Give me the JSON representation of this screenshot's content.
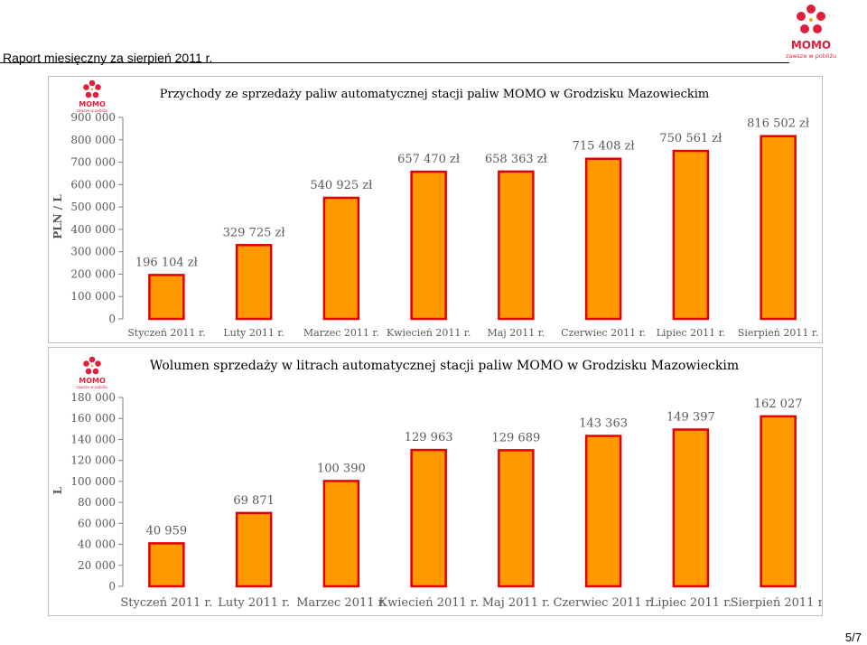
{
  "header": {
    "report_title": "Raport miesięczny za sierpień 2011 r.",
    "page_number": "5/7"
  },
  "logo": {
    "brand": "MOMO",
    "tagline": "zawsze w pobliżu"
  },
  "colors": {
    "bar_fill": "#FF9900",
    "bar_stroke": "#E00000",
    "axis": "#808080",
    "text": "#595959",
    "logo_red": "#E01F3D"
  },
  "chart_data": [
    {
      "type": "bar",
      "title": "Przychody ze sprzedaży paliw automatycznej stacji paliw MOMO w Grodzisku Mazowieckim",
      "xlabel": "",
      "ylabel": "PLN / L",
      "ylim": [
        0,
        900000
      ],
      "ytick_labels": [
        "0",
        "100 000",
        "200 000",
        "300 000",
        "400 000",
        "500 000",
        "600 000",
        "700 000",
        "800 000",
        "900 000"
      ],
      "categories": [
        "Styczeń 2011 r.",
        "Luty 2011 r.",
        "Marzec 2011 r.",
        "Kwiecień 2011 r.",
        "Maj 2011 r.",
        "Czerwiec 2011 r.",
        "Lipiec 2011 r.",
        "Sierpień 2011 r."
      ],
      "values": [
        196104,
        329725,
        540925,
        657470,
        658363,
        715408,
        750561,
        816502
      ],
      "data_labels": [
        "196 104 zł",
        "329 725 zł",
        "540 925 zł",
        "657 470 zł",
        "658 363 zł",
        "715 408 zł",
        "750 561 zł",
        "816 502 zł"
      ],
      "grid": false,
      "legend": "none"
    },
    {
      "type": "bar",
      "title": "Wolumen sprzedaży w litrach automatycznej stacji paliw MOMO w Grodzisku Mazowieckim",
      "xlabel": "",
      "ylabel": "L",
      "ylim": [
        0,
        180000
      ],
      "ytick_labels": [
        "0",
        "20 000",
        "40 000",
        "60 000",
        "80 000",
        "100 000",
        "120 000",
        "140 000",
        "160 000",
        "180 000"
      ],
      "categories": [
        "Styczeń 2011 r.",
        "Luty 2011 r.",
        "Marzec 2011 r.",
        "Kwiecień 2011 r.",
        "Maj 2011 r.",
        "Czerwiec 2011 r.",
        "Lipiec 2011 r.",
        "Sierpień 2011 r."
      ],
      "values": [
        40959,
        69871,
        100390,
        129963,
        129689,
        143363,
        149397,
        162027
      ],
      "data_labels": [
        "40 959",
        "69 871",
        "100 390",
        "129 963",
        "129 689",
        "143 363",
        "149 397",
        "162 027"
      ],
      "grid": false,
      "legend": "none"
    }
  ]
}
